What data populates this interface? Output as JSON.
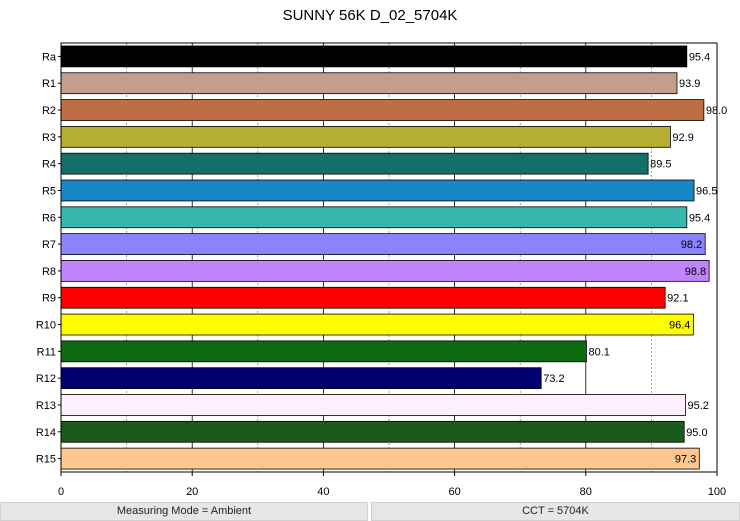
{
  "chart_data": {
    "type": "bar",
    "orientation": "horizontal",
    "title": "SUNNY 56K D_02_5704K",
    "categories": [
      "Ra",
      "R1",
      "R2",
      "R3",
      "R4",
      "R5",
      "R6",
      "R7",
      "R8",
      "R9",
      "R10",
      "R11",
      "R12",
      "R13",
      "R14",
      "R15"
    ],
    "values": [
      95.4,
      93.9,
      98.0,
      92.9,
      89.5,
      96.5,
      95.4,
      98.2,
      98.8,
      92.1,
      96.4,
      80.1,
      73.2,
      95.2,
      95.0,
      97.3
    ],
    "value_labels": [
      "95.4",
      "93.9",
      "98.0",
      "92.9",
      "89.5",
      "96.5",
      "95.4",
      "98.2",
      "98.8",
      "92.1",
      "96.4",
      "80.1",
      "73.2",
      "95.2",
      "95.0",
      "97.3"
    ],
    "colors": [
      "#000000",
      "#c69c8c",
      "#be6e44",
      "#b5ae33",
      "#137069",
      "#1688c6",
      "#38b8ac",
      "#8a84fc",
      "#c084fc",
      "#fe0000",
      "#fefe00",
      "#0e6a10",
      "#010071",
      "#fef0fe",
      "#1c5a1c",
      "#fec690"
    ],
    "xlim": [
      0,
      100
    ],
    "x_ticks": [
      0,
      20,
      40,
      60,
      80,
      100
    ],
    "x_tick_labels": [
      "0",
      "20",
      "40",
      "60",
      "80",
      "100"
    ],
    "grid": true
  },
  "footer": {
    "left": "Measuring Mode = Ambient",
    "right": "CCT = 5704K"
  }
}
